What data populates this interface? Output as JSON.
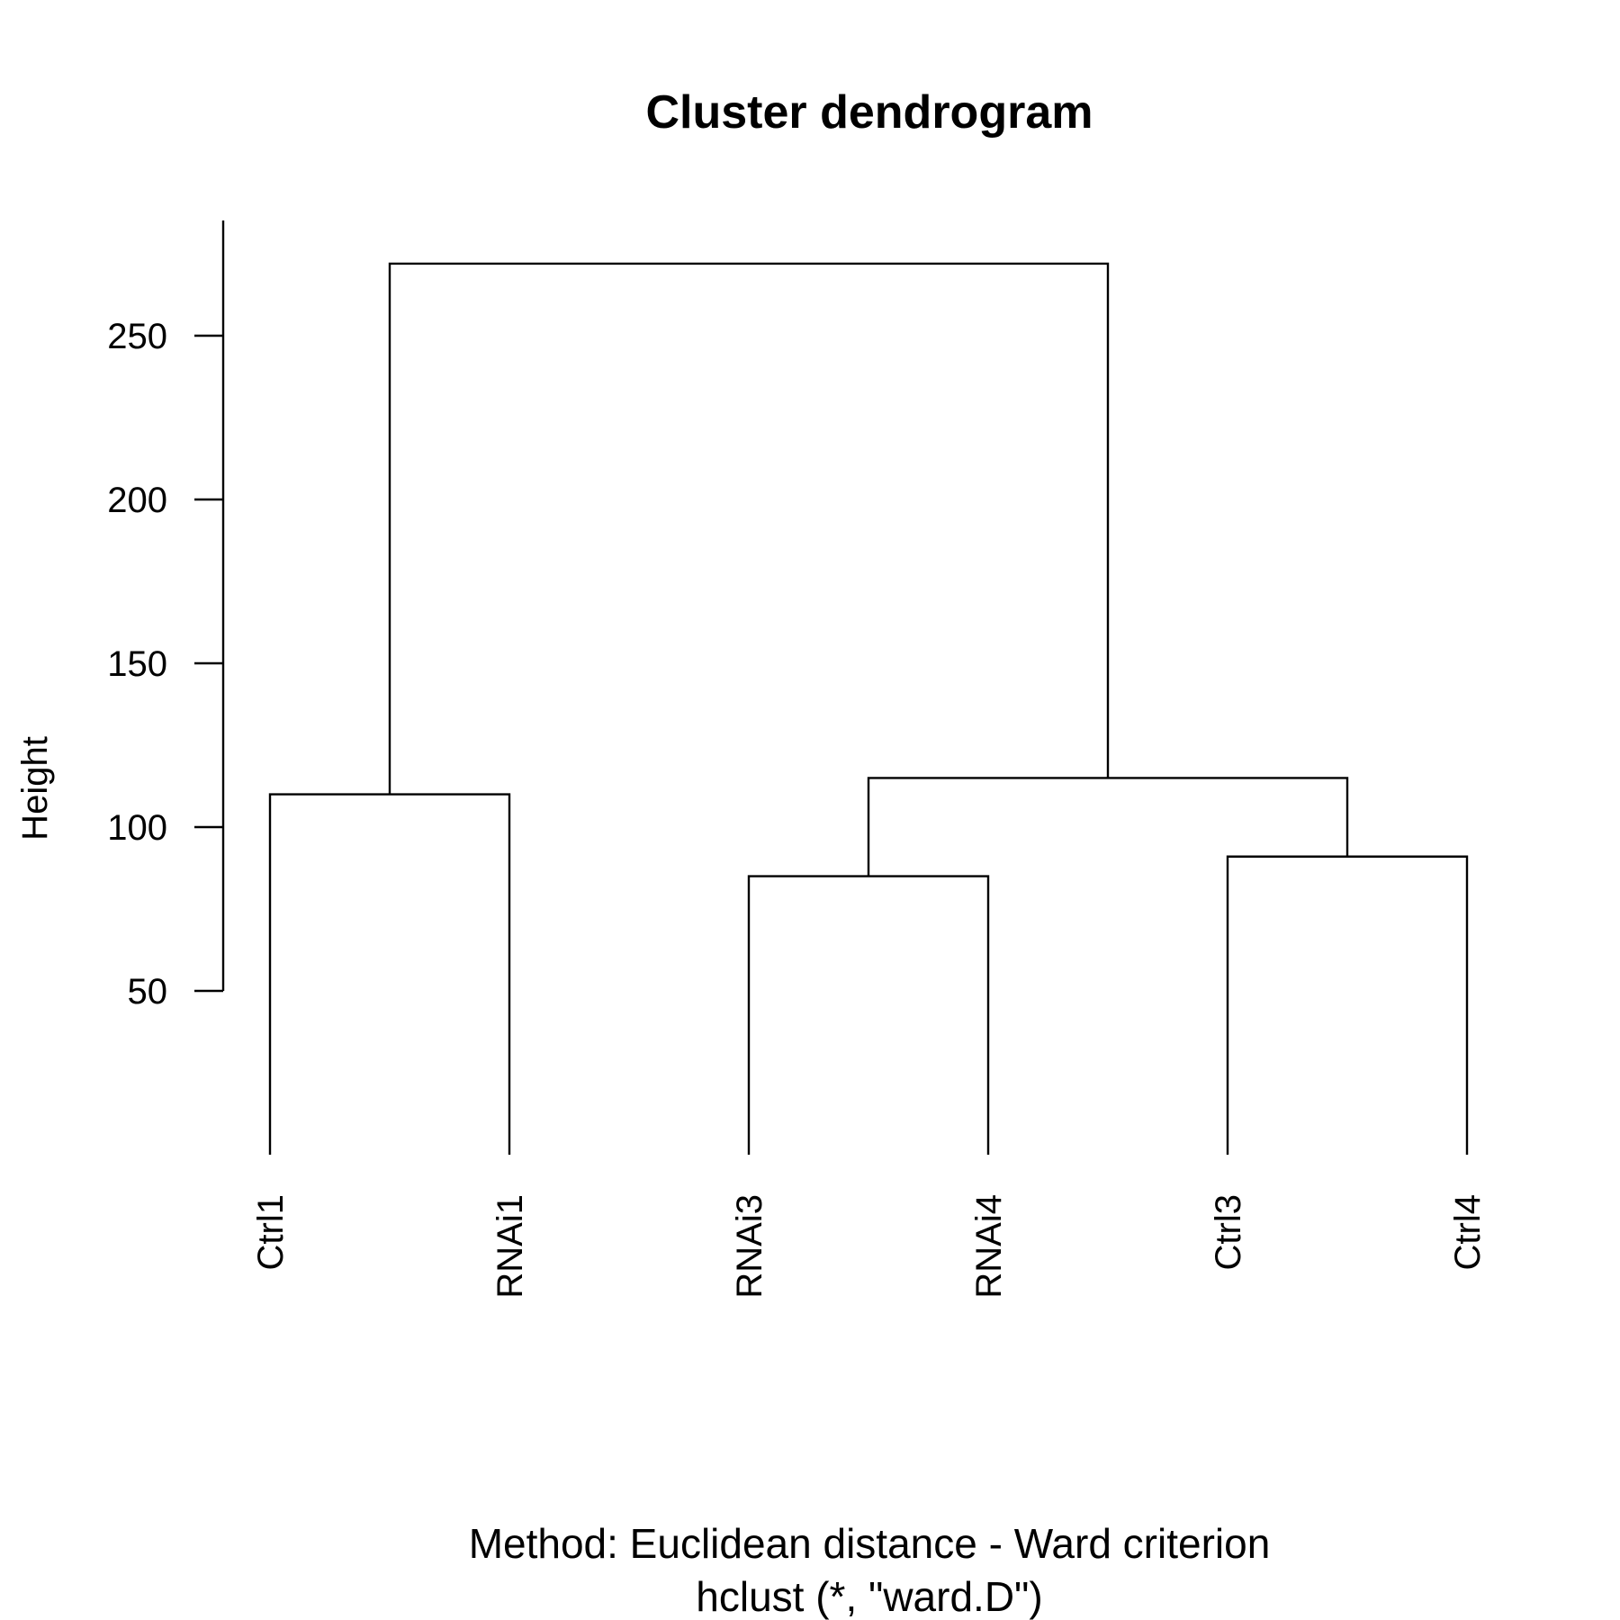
{
  "chart_data": {
    "type": "dendrogram",
    "title": "Cluster dendrogram",
    "ylabel": "Height",
    "xlabel": "Method: Euclidean distance - Ward criterion",
    "sublabel": "hclust (*, \"ward.D\")",
    "ylim": [
      0,
      280
    ],
    "yticks": [
      50,
      100,
      150,
      200,
      250
    ],
    "leaf_bottom": 0,
    "leaves": [
      "Ctrl1",
      "RNAi1",
      "RNAi3",
      "RNAi4",
      "Ctrl3",
      "Ctrl4"
    ],
    "merges": [
      {
        "left": "Ctrl1",
        "right": "RNAi1",
        "height": 110
      },
      {
        "left": "RNAi3",
        "right": "RNAi4",
        "height": 85
      },
      {
        "left": "Ctrl3",
        "right": "Ctrl4",
        "height": 91
      },
      {
        "left": "RNAi3+RNAi4",
        "right": "Ctrl3+Ctrl4",
        "height": 115
      },
      {
        "left": "Ctrl1+RNAi1",
        "right": "RNAi3+RNAi4+Ctrl3+Ctrl4",
        "height": 272
      }
    ]
  }
}
